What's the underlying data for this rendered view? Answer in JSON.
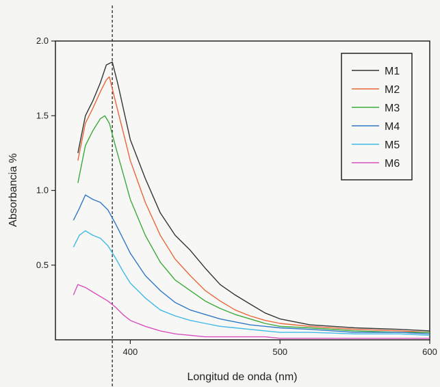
{
  "chart_data": {
    "type": "line",
    "title": "",
    "xlabel": "Longitud de onda (nm)",
    "ylabel": "Absorbancia %",
    "xlim": [
      350,
      600
    ],
    "ylim": [
      0,
      2.0
    ],
    "xticks": [
      400,
      500,
      600
    ],
    "xtick_labels": [
      "400",
      "500",
      "600"
    ],
    "yticks": [
      0.5,
      1.0,
      1.5,
      2.0
    ],
    "ytick_labels": [
      "0.5",
      "1.0",
      "1.5",
      "2.0"
    ],
    "grid": false,
    "legend_position": "top-right",
    "reference_line": {
      "x": 388,
      "style": "dashed",
      "color": "#333333"
    },
    "series": [
      {
        "name": "M1",
        "color": "#333333",
        "x": [
          365,
          370,
          375,
          380,
          384,
          388,
          392,
          396,
          400,
          410,
          420,
          430,
          440,
          450,
          460,
          470,
          480,
          490,
          500,
          520,
          550,
          580,
          600
        ],
        "y": [
          1.25,
          1.5,
          1.6,
          1.72,
          1.84,
          1.86,
          1.7,
          1.52,
          1.34,
          1.08,
          0.85,
          0.7,
          0.6,
          0.48,
          0.37,
          0.3,
          0.24,
          0.18,
          0.14,
          0.1,
          0.08,
          0.07,
          0.06
        ]
      },
      {
        "name": "M2",
        "color": "#e8663a",
        "x": [
          365,
          370,
          375,
          380,
          384,
          386,
          390,
          395,
          400,
          410,
          420,
          430,
          440,
          450,
          460,
          470,
          480,
          490,
          500,
          520,
          550,
          580,
          600
        ],
        "y": [
          1.2,
          1.45,
          1.55,
          1.66,
          1.74,
          1.76,
          1.6,
          1.4,
          1.2,
          0.92,
          0.7,
          0.54,
          0.43,
          0.33,
          0.26,
          0.2,
          0.16,
          0.13,
          0.11,
          0.09,
          0.07,
          0.06,
          0.05
        ]
      },
      {
        "name": "M3",
        "color": "#3aaa3a",
        "x": [
          365,
          370,
          375,
          380,
          383,
          386,
          390,
          395,
          400,
          410,
          420,
          430,
          440,
          450,
          460,
          470,
          480,
          490,
          500,
          520,
          550,
          580,
          600
        ],
        "y": [
          1.05,
          1.3,
          1.4,
          1.48,
          1.5,
          1.45,
          1.3,
          1.12,
          0.94,
          0.7,
          0.52,
          0.4,
          0.33,
          0.26,
          0.21,
          0.17,
          0.14,
          0.11,
          0.09,
          0.08,
          0.06,
          0.05,
          0.05
        ]
      },
      {
        "name": "M4",
        "color": "#2f78c8",
        "x": [
          362,
          366,
          370,
          375,
          380,
          385,
          390,
          395,
          400,
          410,
          420,
          430,
          440,
          450,
          460,
          470,
          480,
          490,
          500,
          520,
          550,
          580,
          600
        ],
        "y": [
          0.8,
          0.88,
          0.97,
          0.94,
          0.92,
          0.87,
          0.78,
          0.68,
          0.58,
          0.43,
          0.33,
          0.25,
          0.2,
          0.17,
          0.14,
          0.12,
          0.1,
          0.09,
          0.08,
          0.07,
          0.05,
          0.05,
          0.04
        ]
      },
      {
        "name": "M5",
        "color": "#3fb9e6",
        "x": [
          362,
          366,
          370,
          375,
          380,
          385,
          390,
          395,
          400,
          410,
          420,
          430,
          440,
          450,
          460,
          470,
          480,
          490,
          500,
          520,
          550,
          580,
          600
        ],
        "y": [
          0.62,
          0.7,
          0.73,
          0.7,
          0.68,
          0.63,
          0.55,
          0.46,
          0.38,
          0.28,
          0.2,
          0.16,
          0.13,
          0.11,
          0.09,
          0.08,
          0.07,
          0.06,
          0.05,
          0.05,
          0.04,
          0.04,
          0.03
        ]
      },
      {
        "name": "M6",
        "color": "#d94fbf",
        "x": [
          362,
          365,
          370,
          375,
          380,
          385,
          390,
          395,
          400,
          410,
          420,
          430,
          440,
          450,
          460,
          470,
          480,
          490,
          500,
          520,
          550,
          580,
          600
        ],
        "y": [
          0.3,
          0.37,
          0.35,
          0.32,
          0.29,
          0.26,
          0.22,
          0.17,
          0.13,
          0.09,
          0.06,
          0.04,
          0.03,
          0.02,
          0.02,
          0.02,
          0.02,
          0.02,
          0.01,
          0.01,
          0.01,
          0.01,
          0.01
        ]
      }
    ]
  }
}
